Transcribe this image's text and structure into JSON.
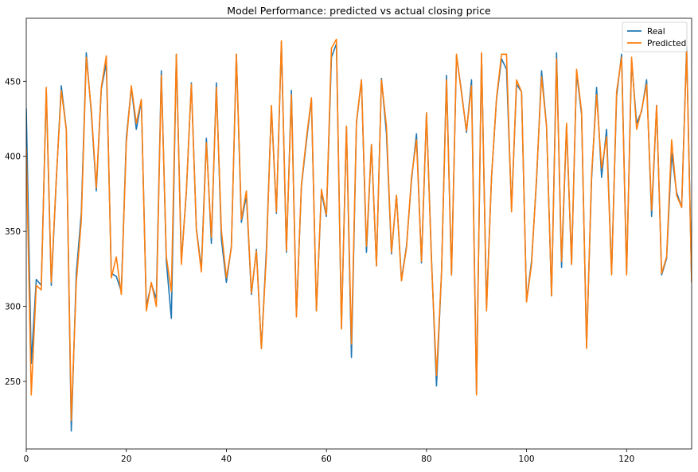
{
  "chart_data": {
    "type": "line",
    "title": "Model Performance: predicted vs actual closing price",
    "xlabel": "",
    "ylabel": "",
    "xlim": [
      0,
      133
    ],
    "ylim": [
      205,
      492
    ],
    "xticks": [
      0,
      20,
      40,
      60,
      80,
      100,
      120
    ],
    "yticks": [
      250,
      300,
      350,
      400,
      450
    ],
    "grid": false,
    "legend_position": "top-right",
    "series": [
      {
        "name": "Real",
        "color": "#1f77b4",
        "values": [
          432,
          262,
          318,
          314,
          444,
          314,
          384,
          447,
          418,
          217,
          322,
          362,
          469,
          429,
          377,
          445,
          462,
          322,
          320,
          310,
          412,
          446,
          418,
          437,
          300,
          315,
          305,
          457,
          330,
          292,
          468,
          330,
          376,
          449,
          352,
          325,
          412,
          342,
          449,
          345,
          316,
          340,
          468,
          356,
          374,
          308,
          338,
          272,
          338,
          433,
          362,
          476,
          336,
          444,
          294,
          380,
          410,
          438,
          297,
          376,
          360,
          466,
          475,
          286,
          420,
          266,
          422,
          451,
          336,
          408,
          327,
          452,
          415,
          335,
          374,
          318,
          340,
          384,
          415,
          329,
          429,
          332,
          247,
          322,
          454,
          321,
          467,
          443,
          416,
          451,
          242,
          468,
          299,
          386,
          438,
          465,
          458,
          365,
          448,
          443,
          304,
          330,
          384,
          457,
          420,
          307,
          469,
          326,
          421,
          328,
          456,
          428,
          273,
          385,
          446,
          386,
          418,
          322,
          440,
          468,
          322,
          464,
          422,
          430,
          451,
          360,
          434,
          321,
          332,
          402,
          376,
          366,
          473,
          316
        ]
      },
      {
        "name": "Predicted",
        "color": "#ff7f0e",
        "values": [
          406,
          241,
          314,
          311,
          446,
          316,
          385,
          444,
          418,
          224,
          316,
          357,
          466,
          431,
          379,
          446,
          467,
          319,
          333,
          308,
          409,
          447,
          422,
          438,
          297,
          316,
          300,
          454,
          333,
          310,
          468,
          328,
          377,
          448,
          351,
          323,
          409,
          346,
          446,
          351,
          319,
          339,
          468,
          358,
          377,
          309,
          337,
          272,
          334,
          434,
          363,
          477,
          337,
          441,
          293,
          381,
          412,
          439,
          297,
          378,
          361,
          472,
          478,
          285,
          420,
          275,
          423,
          451,
          340,
          408,
          327,
          451,
          420,
          336,
          374,
          317,
          339,
          386,
          411,
          330,
          429,
          330,
          254,
          322,
          451,
          321,
          468,
          442,
          417,
          447,
          241,
          469,
          297,
          386,
          439,
          468,
          468,
          363,
          451,
          443,
          303,
          328,
          386,
          453,
          420,
          307,
          465,
          330,
          422,
          328,
          458,
          430,
          272,
          388,
          441,
          392,
          413,
          321,
          443,
          466,
          321,
          466,
          418,
          431,
          448,
          364,
          434,
          322,
          333,
          411,
          374,
          366,
          470,
          316
        ]
      }
    ]
  }
}
